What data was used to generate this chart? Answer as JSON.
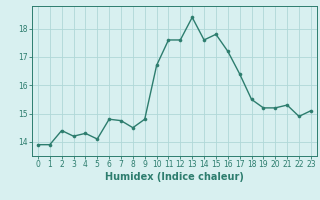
{
  "x": [
    0,
    1,
    2,
    3,
    4,
    5,
    6,
    7,
    8,
    9,
    10,
    11,
    12,
    13,
    14,
    15,
    16,
    17,
    18,
    19,
    20,
    21,
    22,
    23
  ],
  "y": [
    13.9,
    13.9,
    14.4,
    14.2,
    14.3,
    14.1,
    14.8,
    14.75,
    14.5,
    14.8,
    16.7,
    17.6,
    17.6,
    18.4,
    17.6,
    17.8,
    17.2,
    16.4,
    15.5,
    15.2,
    15.2,
    15.3,
    14.9,
    15.1
  ],
  "line_color": "#2d7d6e",
  "marker": "o",
  "marker_size": 2.2,
  "line_width": 1.0,
  "bg_color": "#d8f0f0",
  "grid_color": "#b0d8d8",
  "xlabel": "Humidex (Indice chaleur)",
  "xlim": [
    -0.5,
    23.5
  ],
  "ylim": [
    13.5,
    18.8
  ],
  "yticks": [
    14,
    15,
    16,
    17,
    18
  ],
  "xticks": [
    0,
    1,
    2,
    3,
    4,
    5,
    6,
    7,
    8,
    9,
    10,
    11,
    12,
    13,
    14,
    15,
    16,
    17,
    18,
    19,
    20,
    21,
    22,
    23
  ],
  "tick_fontsize": 5.5,
  "xlabel_fontsize": 7.0
}
